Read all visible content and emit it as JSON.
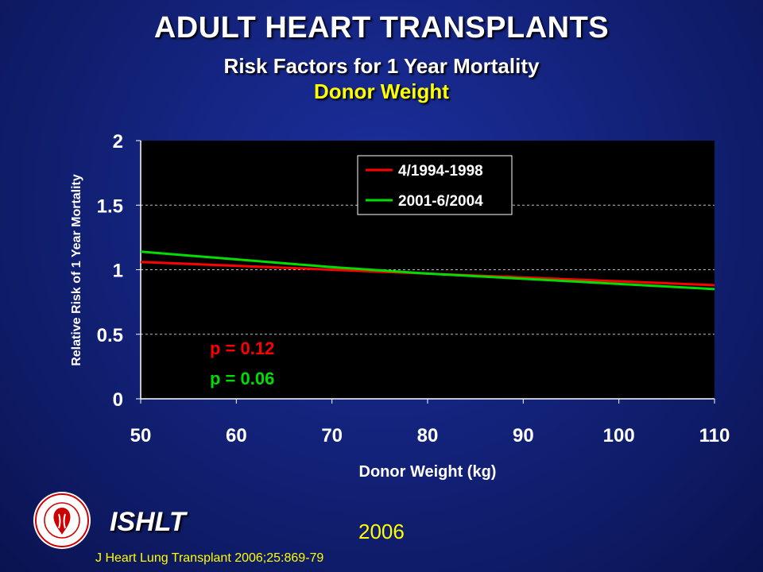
{
  "header": {
    "title": "ADULT HEART TRANSPLANTS",
    "subtitle": "Risk Factors for 1 Year Mortality",
    "topic": "Donor Weight"
  },
  "chart_data": {
    "type": "line",
    "xlabel": "Donor Weight (kg)",
    "ylabel": "Relative Risk of 1 Year Mortality",
    "xlim": [
      50,
      110
    ],
    "ylim": [
      0,
      2
    ],
    "xticks": [
      "50",
      "60",
      "70",
      "80",
      "90",
      "100",
      "110"
    ],
    "yticks": [
      "0",
      "0.5",
      "1",
      "1.5",
      "2"
    ],
    "grid": "horizontal dashed",
    "legend_position": "top-right",
    "series": [
      {
        "name": "4/1994-1998",
        "color": "#ff0000",
        "x": [
          50,
          60,
          70,
          80,
          90,
          100,
          110
        ],
        "y": [
          1.06,
          1.03,
          1.0,
          0.97,
          0.94,
          0.91,
          0.88
        ]
      },
      {
        "name": "2001-6/2004",
        "color": "#00dd00",
        "x": [
          50,
          60,
          70,
          80,
          90,
          100,
          110
        ],
        "y": [
          1.14,
          1.08,
          1.02,
          0.97,
          0.93,
          0.89,
          0.85
        ]
      }
    ],
    "annotations": [
      {
        "text": "p = 0.12",
        "color": "#ff0000"
      },
      {
        "text": "p = 0.06",
        "color": "#00dd00"
      }
    ]
  },
  "footer": {
    "org": "ISHLT",
    "year": "2006",
    "citation": "J Heart Lung Transplant 2006;25:869-79",
    "logo_text": "INTERNATIONAL SOCIETY FOR HEART & LUNG TRANSPLANTATION"
  },
  "colors": {
    "background": "#13237c",
    "title": "#ffffff",
    "accent": "#ffff00",
    "plot_bg": "#000000"
  }
}
